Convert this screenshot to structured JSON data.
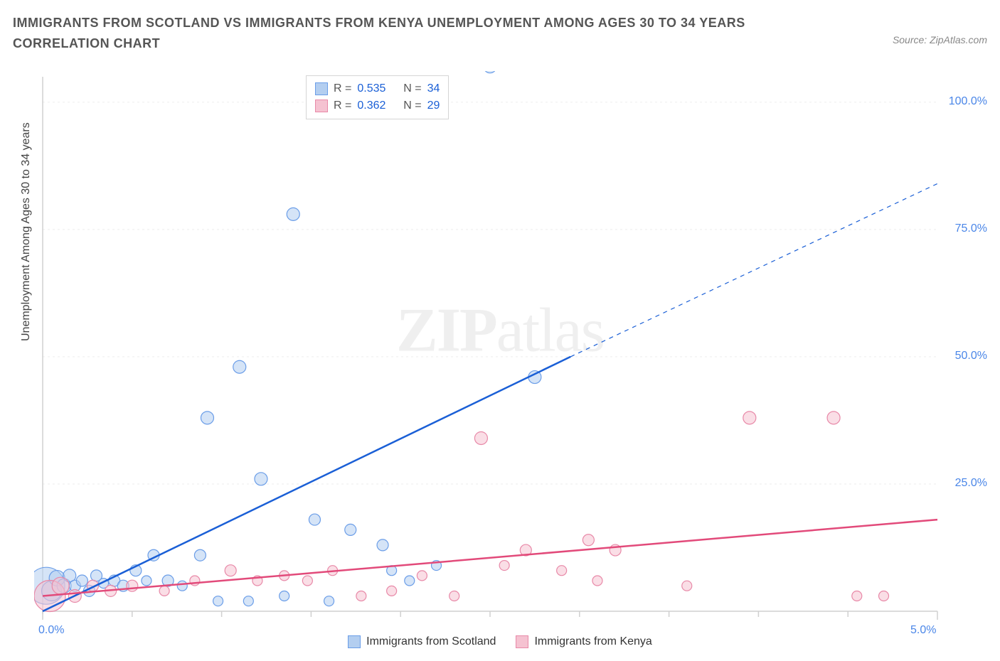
{
  "title": "IMMIGRANTS FROM SCOTLAND VS IMMIGRANTS FROM KENYA UNEMPLOYMENT AMONG AGES 30 TO 34 YEARS CORRELATION CHART",
  "source": "Source: ZipAtlas.com",
  "yaxis_label": "Unemployment Among Ages 30 to 34 years",
  "watermark_bold": "ZIP",
  "watermark_light": "atlas",
  "chart": {
    "type": "scatter-correlation",
    "background_color": "#ffffff",
    "grid_color": "#ededed",
    "axis_color": "#d0d0d0",
    "tick_label_color": "#4a86e8",
    "tick_fontsize": 16,
    "x_domain": [
      0,
      5
    ],
    "y_domain": [
      0,
      105
    ],
    "y_ticks": [
      25,
      50,
      75,
      100
    ],
    "y_tick_labels": [
      "25.0%",
      "50.0%",
      "75.0%",
      "100.0%"
    ],
    "x_ticks": [
      0,
      5
    ],
    "x_tick_labels": [
      "0.0%",
      "5.0%"
    ],
    "x_minor_ticks": [
      0.5,
      1.0,
      1.5,
      2.0,
      2.5,
      3.0,
      3.5,
      4.0,
      4.5
    ],
    "series": [
      {
        "name": "Immigrants from Scotland",
        "fill": "#b3cef0",
        "stroke": "#6a9de8",
        "fill_opacity": 0.55,
        "r_stat": "0.535",
        "n_stat": "34",
        "trend": {
          "color": "#1a5fd6",
          "width": 2.5,
          "dashed_extension": true,
          "x1": 0,
          "y1": 0,
          "x2": 2.95,
          "y2": 50,
          "x3": 5.0,
          "y3": 84
        },
        "points": [
          {
            "x": 0.02,
            "y": 5,
            "r": 26
          },
          {
            "x": 0.05,
            "y": 4,
            "r": 14
          },
          {
            "x": 0.08,
            "y": 6.5,
            "r": 11
          },
          {
            "x": 0.12,
            "y": 5,
            "r": 10
          },
          {
            "x": 0.15,
            "y": 7,
            "r": 9
          },
          {
            "x": 0.18,
            "y": 5,
            "r": 8
          },
          {
            "x": 0.22,
            "y": 6,
            "r": 8
          },
          {
            "x": 0.26,
            "y": 4,
            "r": 8
          },
          {
            "x": 0.3,
            "y": 7,
            "r": 8
          },
          {
            "x": 0.34,
            "y": 5.5,
            "r": 7
          },
          {
            "x": 0.4,
            "y": 6,
            "r": 8
          },
          {
            "x": 0.45,
            "y": 5,
            "r": 8
          },
          {
            "x": 0.52,
            "y": 8,
            "r": 8
          },
          {
            "x": 0.58,
            "y": 6,
            "r": 7
          },
          {
            "x": 0.62,
            "y": 11,
            "r": 8
          },
          {
            "x": 0.7,
            "y": 6,
            "r": 8
          },
          {
            "x": 0.78,
            "y": 5,
            "r": 7
          },
          {
            "x": 0.88,
            "y": 11,
            "r": 8
          },
          {
            "x": 0.92,
            "y": 38,
            "r": 9
          },
          {
            "x": 0.98,
            "y": 2,
            "r": 7
          },
          {
            "x": 1.1,
            "y": 48,
            "r": 9
          },
          {
            "x": 1.15,
            "y": 2,
            "r": 7
          },
          {
            "x": 1.22,
            "y": 26,
            "r": 9
          },
          {
            "x": 1.35,
            "y": 3,
            "r": 7
          },
          {
            "x": 1.4,
            "y": 78,
            "r": 9
          },
          {
            "x": 1.52,
            "y": 18,
            "r": 8
          },
          {
            "x": 1.6,
            "y": 2,
            "r": 7
          },
          {
            "x": 1.72,
            "y": 16,
            "r": 8
          },
          {
            "x": 1.9,
            "y": 13,
            "r": 8
          },
          {
            "x": 1.95,
            "y": 8,
            "r": 7
          },
          {
            "x": 2.05,
            "y": 6,
            "r": 7
          },
          {
            "x": 2.2,
            "y": 9,
            "r": 7
          },
          {
            "x": 2.5,
            "y": 107,
            "r": 9
          },
          {
            "x": 2.75,
            "y": 46,
            "r": 9
          }
        ]
      },
      {
        "name": "Immigrants from Kenya",
        "fill": "#f5c2d1",
        "stroke": "#e889a8",
        "fill_opacity": 0.55,
        "r_stat": "0.362",
        "n_stat": "29",
        "trend": {
          "color": "#e24a7a",
          "width": 2.5,
          "dashed_extension": false,
          "x1": 0,
          "y1": 3,
          "x2": 5.0,
          "y2": 18
        },
        "points": [
          {
            "x": 0.04,
            "y": 3,
            "r": 22
          },
          {
            "x": 0.1,
            "y": 5,
            "r": 12
          },
          {
            "x": 0.18,
            "y": 3,
            "r": 9
          },
          {
            "x": 0.28,
            "y": 5,
            "r": 8
          },
          {
            "x": 0.38,
            "y": 4,
            "r": 8
          },
          {
            "x": 0.5,
            "y": 5,
            "r": 8
          },
          {
            "x": 0.68,
            "y": 4,
            "r": 7
          },
          {
            "x": 0.85,
            "y": 6,
            "r": 7
          },
          {
            "x": 1.05,
            "y": 8,
            "r": 8
          },
          {
            "x": 1.2,
            "y": 6,
            "r": 7
          },
          {
            "x": 1.35,
            "y": 7,
            "r": 7
          },
          {
            "x": 1.48,
            "y": 6,
            "r": 7
          },
          {
            "x": 1.62,
            "y": 8,
            "r": 7
          },
          {
            "x": 1.78,
            "y": 3,
            "r": 7
          },
          {
            "x": 1.95,
            "y": 4,
            "r": 7
          },
          {
            "x": 2.12,
            "y": 7,
            "r": 7
          },
          {
            "x": 2.3,
            "y": 3,
            "r": 7
          },
          {
            "x": 2.45,
            "y": 34,
            "r": 9
          },
          {
            "x": 2.58,
            "y": 9,
            "r": 7
          },
          {
            "x": 2.7,
            "y": 12,
            "r": 8
          },
          {
            "x": 2.9,
            "y": 8,
            "r": 7
          },
          {
            "x": 3.05,
            "y": 14,
            "r": 8
          },
          {
            "x": 3.1,
            "y": 6,
            "r": 7
          },
          {
            "x": 3.2,
            "y": 12,
            "r": 8
          },
          {
            "x": 3.6,
            "y": 5,
            "r": 7
          },
          {
            "x": 3.95,
            "y": 38,
            "r": 9
          },
          {
            "x": 4.42,
            "y": 38,
            "r": 9
          },
          {
            "x": 4.55,
            "y": 3,
            "r": 7
          },
          {
            "x": 4.7,
            "y": 3,
            "r": 7
          }
        ]
      }
    ]
  },
  "legend_stats": {
    "r_label": "R =",
    "n_label": "N ="
  },
  "bottom_legend": [
    {
      "label": "Immigrants from Scotland",
      "fill": "#b3cef0",
      "stroke": "#6a9de8"
    },
    {
      "label": "Immigrants from Kenya",
      "fill": "#f5c2d1",
      "stroke": "#e889a8"
    }
  ]
}
